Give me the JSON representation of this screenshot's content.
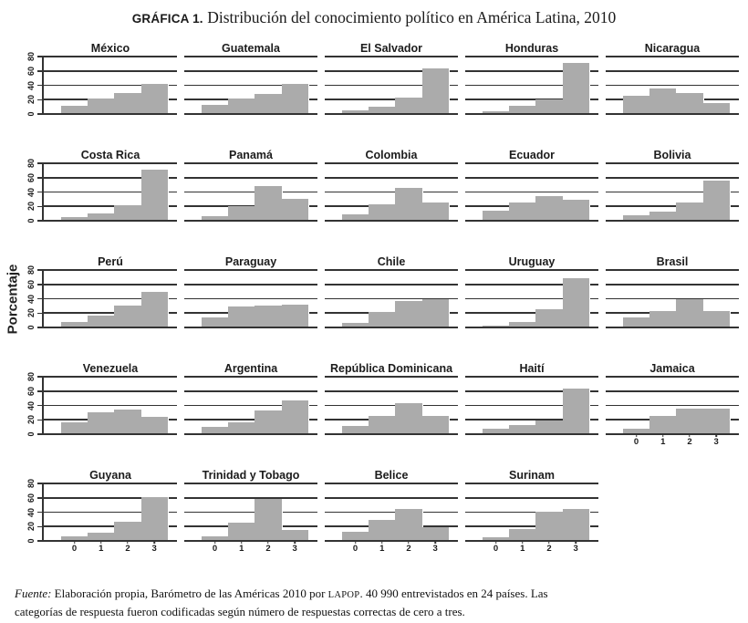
{
  "title": {
    "label": "GRÁFICA 1.",
    "text": "Distribución del conocimiento político en América Latina, 2010"
  },
  "chart_data": {
    "type": "bar",
    "layout": "small-multiples",
    "grid": {
      "rows": 5,
      "cols": 5
    },
    "categories": [
      "0",
      "1",
      "2",
      "3"
    ],
    "ylabel": "Porcentaje",
    "ylim": [
      0,
      80
    ],
    "yticks": [
      0,
      20,
      40,
      60,
      80
    ],
    "bar_color": "#ababab",
    "line_color": "#333333",
    "series": [
      {
        "name": "México",
        "values": [
          10,
          21,
          28,
          41
        ]
      },
      {
        "name": "Guatemala",
        "values": [
          12,
          20,
          27,
          41
        ]
      },
      {
        "name": "El Salvador",
        "values": [
          4,
          9,
          22,
          63
        ]
      },
      {
        "name": "Honduras",
        "values": [
          3,
          10,
          19,
          70
        ]
      },
      {
        "name": "Nicaragua",
        "values": [
          25,
          34,
          28,
          14
        ]
      },
      {
        "name": "Costa Rica",
        "values": [
          4,
          9,
          20,
          70
        ]
      },
      {
        "name": "Panamá",
        "values": [
          5,
          19,
          47,
          30
        ]
      },
      {
        "name": "Colombia",
        "values": [
          8,
          22,
          45,
          25
        ]
      },
      {
        "name": "Ecuador",
        "values": [
          13,
          24,
          33,
          28
        ]
      },
      {
        "name": "Bolivia",
        "values": [
          6,
          12,
          25,
          55
        ]
      },
      {
        "name": "Perú",
        "values": [
          7,
          16,
          30,
          48
        ]
      },
      {
        "name": "Paraguay",
        "values": [
          13,
          28,
          29,
          31
        ]
      },
      {
        "name": "Chile",
        "values": [
          5,
          20,
          36,
          39
        ]
      },
      {
        "name": "Uruguay",
        "values": [
          2,
          6,
          24,
          68
        ]
      },
      {
        "name": "Brasil",
        "values": [
          13,
          22,
          38,
          22
        ]
      },
      {
        "name": "Venezuela",
        "values": [
          16,
          29,
          33,
          23
        ]
      },
      {
        "name": "Argentina",
        "values": [
          9,
          15,
          32,
          46
        ]
      },
      {
        "name": "República Dominicana",
        "values": [
          11,
          24,
          42,
          25
        ]
      },
      {
        "name": "Haití",
        "values": [
          6,
          12,
          18,
          62
        ]
      },
      {
        "name": "Jamaica",
        "values": [
          6,
          24,
          35,
          35
        ]
      },
      {
        "name": "Guyana",
        "values": [
          5,
          10,
          26,
          60
        ]
      },
      {
        "name": "Trinidad y Tobago",
        "values": [
          5,
          25,
          57,
          14
        ]
      },
      {
        "name": "Belice",
        "values": [
          12,
          28,
          43,
          18
        ]
      },
      {
        "name": "Surinam",
        "values": [
          4,
          15,
          40,
          43
        ]
      }
    ]
  },
  "footer": {
    "fuente_label": "Fuente:",
    "part1": "Elaboración propia, Barómetro de las Américas 2010 por ",
    "lapop": "LAPOP",
    "part2": ". 40 990 entrevistados en 24 países. Las categorías de respuesta fueron codificadas según número de respuestas correctas de cero a tres."
  }
}
